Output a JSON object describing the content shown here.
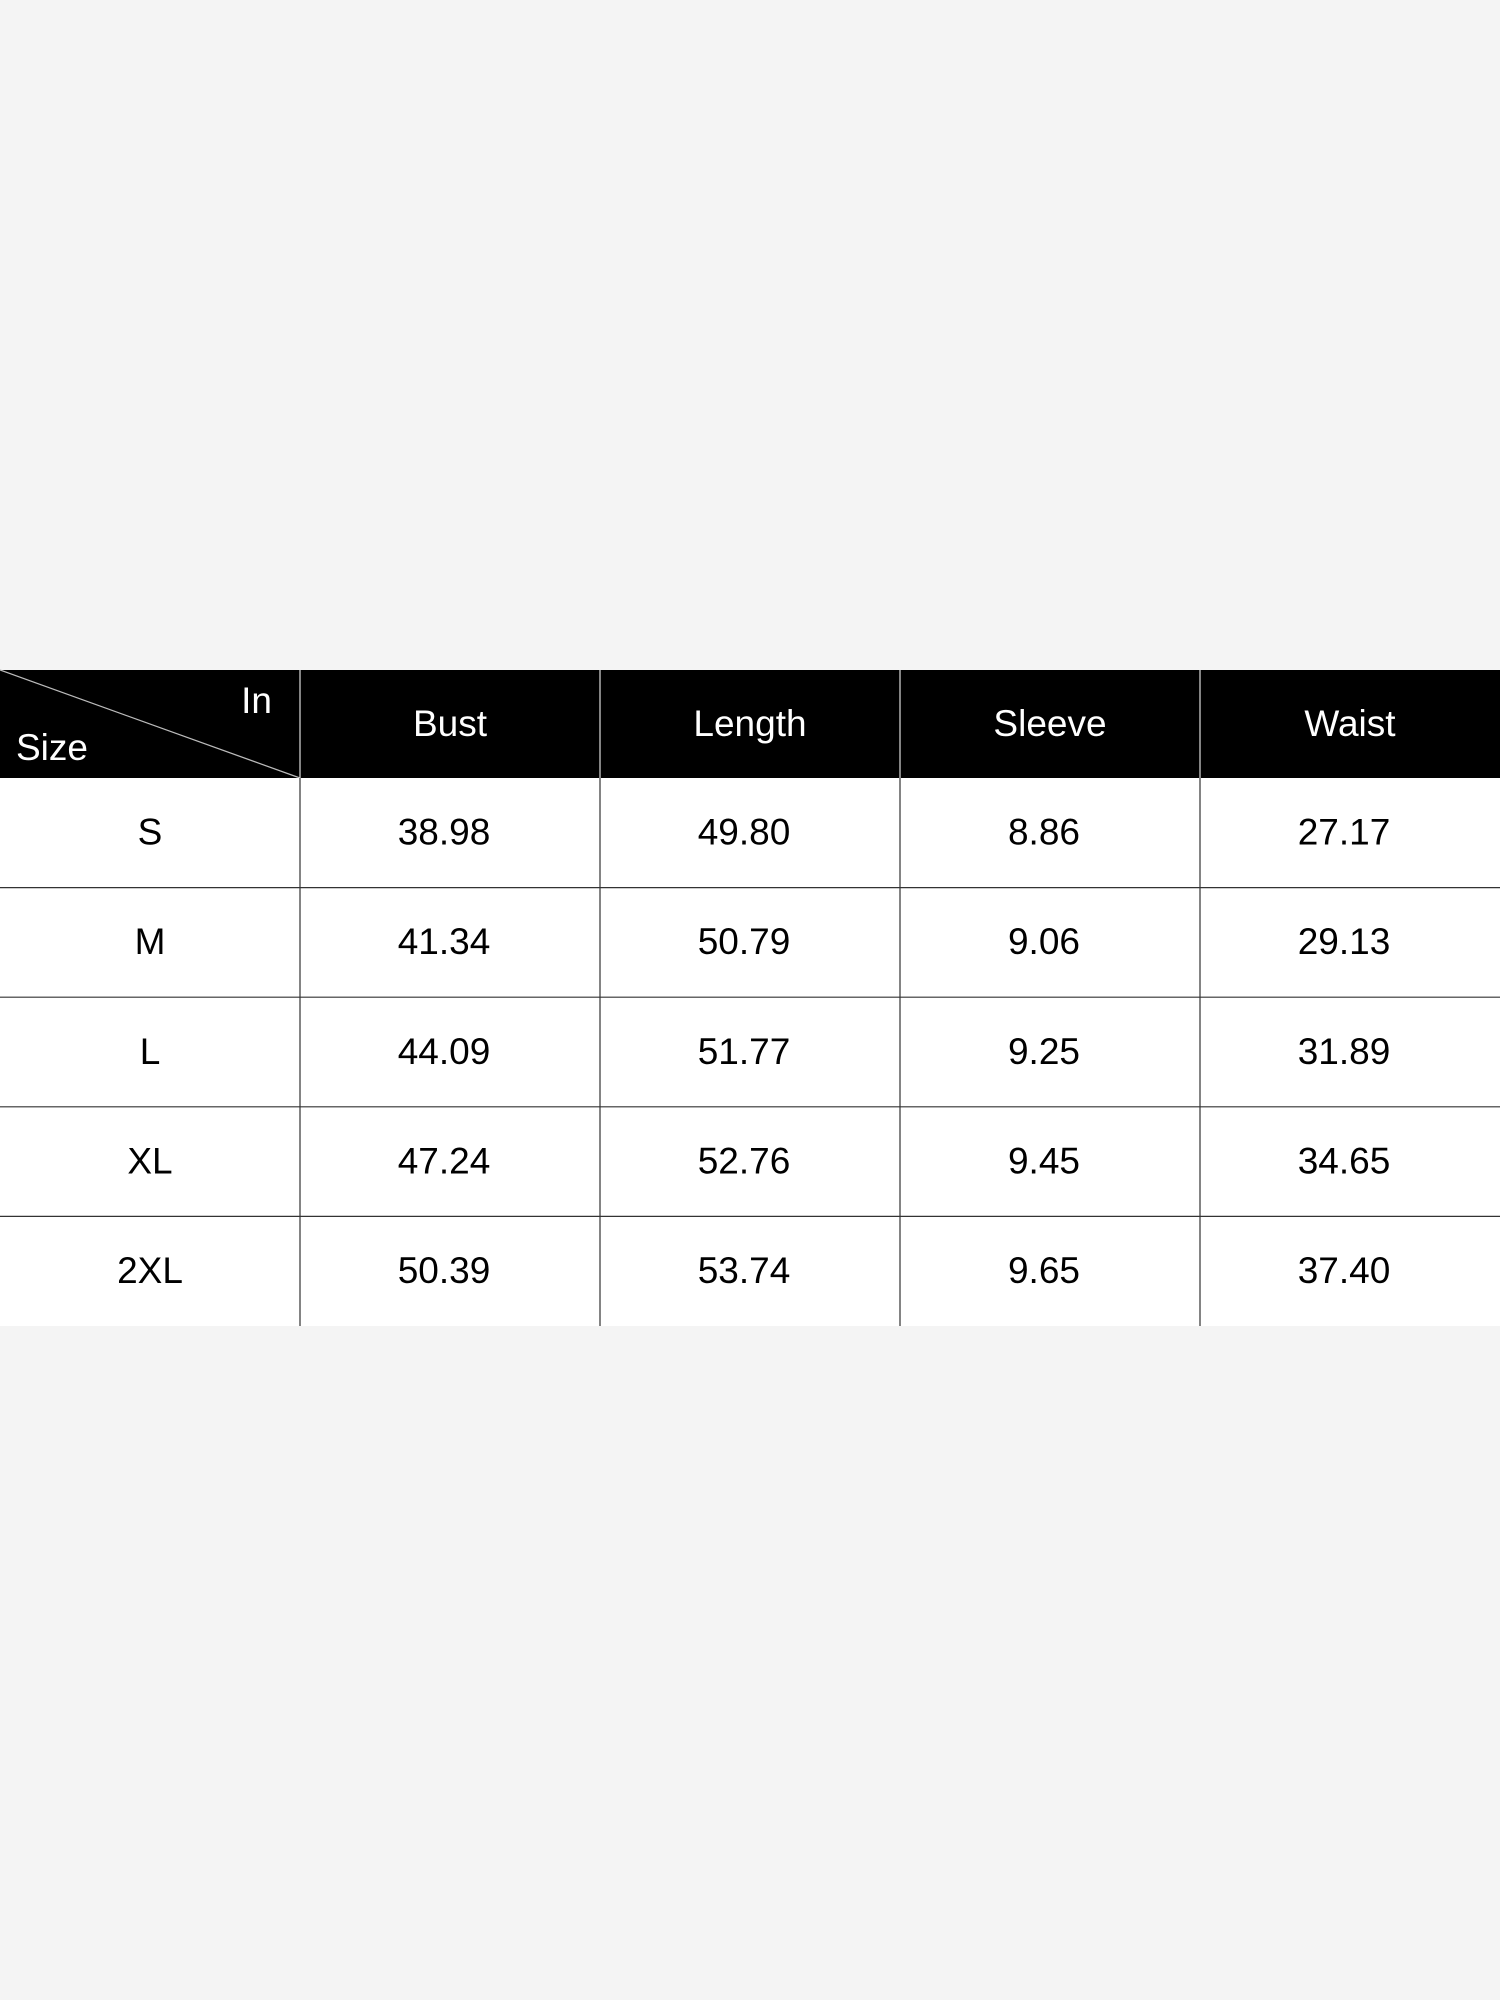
{
  "table": {
    "corner_top": "In",
    "corner_bottom": "Size",
    "headers": [
      "Bust",
      "Length",
      "Sleeve",
      "Waist"
    ],
    "rows": [
      [
        "S",
        "38.98",
        "49.80",
        "8.86",
        "27.17"
      ],
      [
        "M",
        "41.34",
        "50.79",
        "9.06",
        "29.13"
      ],
      [
        "L",
        "44.09",
        "51.77",
        "9.25",
        "31.89"
      ],
      [
        "XL",
        "47.24",
        "52.76",
        "9.45",
        "34.65"
      ],
      [
        "2XL",
        "50.39",
        "53.74",
        "9.65",
        "37.40"
      ]
    ]
  }
}
